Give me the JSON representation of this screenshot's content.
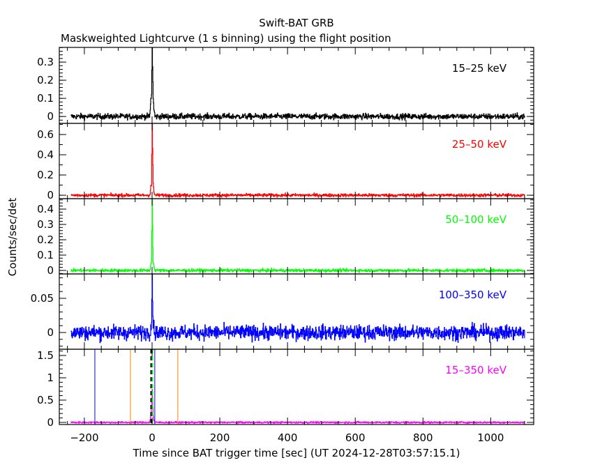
{
  "chart_data": {
    "type": "line",
    "title": "Swift-BAT GRB",
    "subtitle": "Maskweighted Lightcurve (1 s binning) using the flight position",
    "xlabel": "Time since BAT trigger time [sec] (UT 2024-12-28T03:57:15.1)",
    "ylabel": "Counts/sec/det",
    "xlim": [
      -274,
      1127
    ],
    "x_ticks": [
      -200,
      0,
      200,
      400,
      600,
      800,
      1000
    ],
    "x_tick_labels": [
      "−200",
      "0",
      "200",
      "400",
      "600",
      "800",
      "1000"
    ],
    "data_time_range": [
      -240,
      1100
    ],
    "bin_size_s": 1,
    "peak_profile_time": [
      -8,
      -6,
      -4,
      -2,
      0,
      1,
      2,
      3,
      5,
      8
    ],
    "panels": [
      {
        "label": "15–25 keV",
        "color": "#000000",
        "ylim": [
          -0.038,
          0.381
        ],
        "ticks": [
          0,
          0.1,
          0.2,
          0.3
        ],
        "tick_labels": [
          "0",
          "0.1",
          "0.2",
          "0.3"
        ],
        "minor": 0.02,
        "noise": 0.008,
        "peak": [
          0,
          0.03,
          0.1,
          0.12,
          0.38,
          0.27,
          0.2,
          0.1,
          0.04,
          0
        ]
      },
      {
        "label": "25–50 keV",
        "color": "#ff0000",
        "ylim": [
          -0.034,
          0.71
        ],
        "ticks": [
          0,
          0.2,
          0.4,
          0.6
        ],
        "tick_labels": [
          "0",
          "0.2",
          "0.4",
          "0.6"
        ],
        "minor": 0.1,
        "noise": 0.008,
        "peak": [
          0,
          0.02,
          0.09,
          0.1,
          0.72,
          0.45,
          0.3,
          0.12,
          0.03,
          0
        ]
      },
      {
        "label": "50–100 keV",
        "color": "#00ff00",
        "ylim": [
          -0.023,
          0.468
        ],
        "ticks": [
          0,
          0.1,
          0.2,
          0.3,
          0.4
        ],
        "tick_labels": [
          "0",
          "0.1",
          "0.2",
          "0.3",
          "0.4"
        ],
        "minor": 0.02,
        "noise": 0.005,
        "peak": [
          0,
          0.01,
          0.04,
          0.06,
          0.47,
          0.3,
          0.15,
          0.06,
          0.02,
          0
        ]
      },
      {
        "label": "100–350 keV",
        "color": "#0000ff",
        "ylim": [
          -0.0245,
          0.0857
        ],
        "ticks": [
          0,
          0.05
        ],
        "tick_labels": [
          "0",
          "0.05"
        ],
        "minor": 0.01,
        "noise": 0.0055,
        "peak": [
          0,
          0.005,
          0.01,
          0.015,
          0.085,
          0.05,
          0.03,
          0.015,
          0.005,
          0
        ]
      },
      {
        "label": "15–350 keV",
        "color": "#ff00ff",
        "ylim": [
          -0.047,
          1.64
        ],
        "ticks": [
          0,
          0.5,
          1,
          1.5
        ],
        "tick_labels": [
          "0",
          "0.5",
          "1",
          "1.5"
        ],
        "minor": 0.1,
        "noise": 0.01,
        "peak": [
          0,
          0.05,
          0.2,
          0.3,
          0.75,
          0.55,
          0.35,
          0.15,
          0.05,
          0
        ]
      }
    ],
    "markers": [
      {
        "t": -169,
        "color": "#0000ff",
        "style": "solid"
      },
      {
        "t": -64,
        "color": "#ff8000",
        "style": "solid"
      },
      {
        "t": 8,
        "color": "#0000ff",
        "style": "solid"
      },
      {
        "t": 76,
        "color": "#ff8000",
        "style": "solid"
      },
      {
        "t": -3,
        "color": "#000000",
        "style": "dashed"
      },
      {
        "t": 1,
        "color": "#00ff00",
        "style": "dashed"
      }
    ]
  }
}
